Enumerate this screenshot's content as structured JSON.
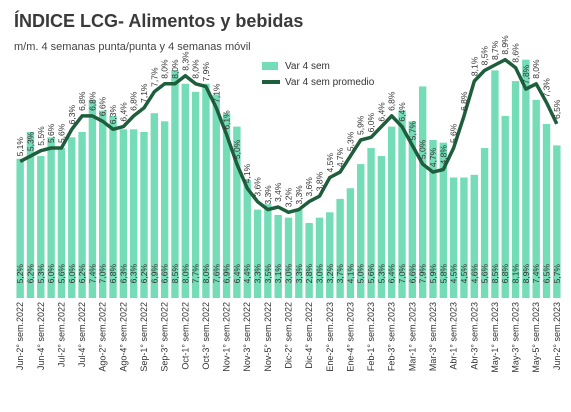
{
  "chart_data": {
    "type": "bar_line",
    "title": "ÍNDICE LCG- Alimentos y bebidas",
    "subtitle": "m/m. 4 semanas punta/punta y 4 semanas móvil",
    "categories": [
      "Jun-2° sem.2022",
      null,
      "Jun-4° sem.2022",
      null,
      "Jul-2° sem.2022",
      null,
      "Jul-4° sem.2022",
      null,
      "Ago-2° sem.2022",
      null,
      "Ago-4° sem.2022",
      null,
      "Sep-1° sem.2022",
      null,
      "Sep-3° sem.2022",
      null,
      "Oct-1° sem.2022",
      null,
      "Oct-3° sem.2022",
      null,
      "Nov-1° sem.2022",
      null,
      "Nov-3° sem.2022",
      null,
      "Nov-5° sem.2022",
      null,
      "Dic-2° sem.2022",
      null,
      "Dic-4° sem.2022",
      null,
      "Ene-2° sem.2023",
      null,
      "Ene-4° sem.2023",
      null,
      "Feb-1° sem.2023",
      null,
      "Feb-3° sem.2023",
      null,
      "Mar-1° sem.2023",
      null,
      "Mar-3° sem.2023",
      null,
      "Abr-1° sem.2023",
      null,
      "Abr-3° sem.2023",
      null,
      "May-1° sem.2023",
      null,
      "May-3° sem.2023",
      null,
      "May-5° sem.2023",
      null,
      "Jun-2° sem.2023"
    ],
    "ylim": [
      0,
      9
    ],
    "series": [
      {
        "name": "Var 4 sem",
        "color": "#74dcb6",
        "kind": "bar",
        "values": [
          5.2,
          6.2,
          5.3,
          6.0,
          5.6,
          6.0,
          6.2,
          7.4,
          7.0,
          6.8,
          6.3,
          6.3,
          6.2,
          6.9,
          6.6,
          8.5,
          8.0,
          7.7,
          8.0,
          7.6,
          6.9,
          6.4,
          4.4,
          3.3,
          3.5,
          3.1,
          3.0,
          3.3,
          2.8,
          3.0,
          3.2,
          3.7,
          4.1,
          5.0,
          5.6,
          5.3,
          6.4,
          7.0,
          6.6,
          7.9,
          5.9,
          5.8,
          4.5,
          4.5,
          4.6,
          5.6,
          8.5,
          6.8,
          8.1,
          8.9,
          7.4,
          6.5,
          5.7
        ],
        "value_labels": [
          "5,2%",
          "6,2%",
          "5,3%",
          "6,0%",
          "5,6%",
          "6,0%",
          "6,2%",
          "7,4%",
          "7,0%",
          "6,8%",
          "6,3%",
          "6,3%",
          "6,2%",
          "6,9%",
          "6,6%",
          "8,5%",
          "8,0%",
          "7,7%",
          "8,0%",
          "7,6%",
          "6,9%",
          "6,4%",
          "4,4%",
          "3,3%",
          "3,5%",
          "3,1%",
          "3,0%",
          "3,3%",
          "2,8%",
          "3,0%",
          "3,2%",
          "3,7%",
          "4,1%",
          "5,0%",
          "5,6%",
          "5,3%",
          "6,4%",
          "7,0%",
          "6,6%",
          "7,9%",
          "5,9%",
          "5,8%",
          "4,5%",
          "4,5%",
          "4,6%",
          "5,6%",
          "8,5%",
          "6,8%",
          "8,1%",
          "8,9%",
          "7,4%",
          "6,5%",
          "5,7%"
        ]
      },
      {
        "name": "Var 4 sem promedio",
        "color": "#1f5e3c",
        "kind": "line",
        "values": [
          5.1,
          5.3,
          5.5,
          5.6,
          5.6,
          6.3,
          6.8,
          6.8,
          6.6,
          6.3,
          6.4,
          6.8,
          7.1,
          7.7,
          8.0,
          8.0,
          8.3,
          8.0,
          7.9,
          7.1,
          6.1,
          5.0,
          4.1,
          3.6,
          3.3,
          3.4,
          3.2,
          3.3,
          3.6,
          3.8,
          4.5,
          4.7,
          5.3,
          5.9,
          6.0,
          6.4,
          6.8,
          6.4,
          5.7,
          5.0,
          4.7,
          4.8,
          5.6,
          6.8,
          8.1,
          8.5,
          8.7,
          8.9,
          8.6,
          7.8,
          8.0,
          7.3,
          6.5
        ],
        "value_labels": [
          "5,1%",
          "5,3%",
          "5,5%",
          "5,6%",
          "5,6%",
          "6,3%",
          "6,8%",
          "6,8%",
          "6,6%",
          "6,3%",
          "6,4%",
          "6,8%",
          "7,1%",
          "7,7%",
          "8,0%",
          "8,0%",
          "8,3%",
          "8,0%",
          "7,9%",
          "7,1%",
          "6,1%",
          "5,0%",
          "4,1%",
          "3,6%",
          "3,3%",
          "3,4%",
          "3,2%",
          "3,3%",
          "3,6%",
          "3,8%",
          "4,5%",
          "4,7%",
          "5,3%",
          "5,9%",
          "6,0%",
          "6,4%",
          "6,8%",
          "6,4%",
          "5,7%",
          "5,0%",
          "4,7%",
          "4,8%",
          "5,6%",
          "6,8%",
          "8,1%",
          "8,5%",
          "8,7%",
          "8,9%",
          "8,6%",
          "7,8%",
          "8,0%",
          "7,3%",
          "6,5%"
        ]
      }
    ]
  }
}
